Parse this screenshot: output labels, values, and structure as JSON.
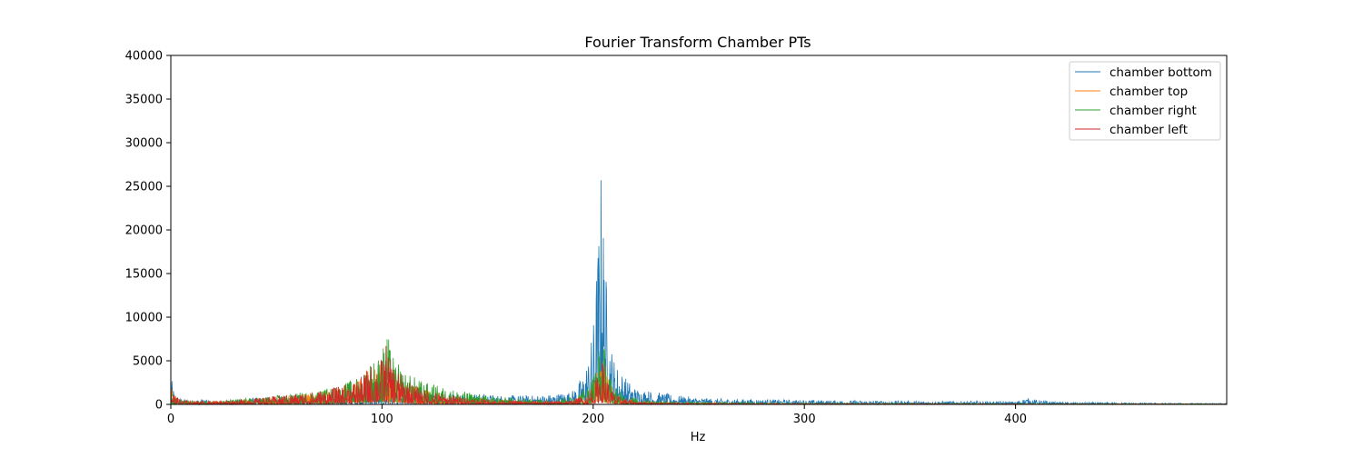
{
  "chart_data": {
    "type": "line",
    "title": "Fourier Transform Chamber PTs",
    "xlabel": "Hz",
    "ylabel": "",
    "xlim": [
      0,
      500
    ],
    "ylim": [
      0,
      40000
    ],
    "x_ticks": [
      0,
      100,
      200,
      300,
      400
    ],
    "y_ticks": [
      0,
      5000,
      10000,
      15000,
      20000,
      25000,
      30000,
      35000,
      40000
    ],
    "grid": false,
    "legend_position": "top-right",
    "series": [
      {
        "name": "chamber bottom",
        "color": "#1f77b4",
        "points": [
          [
            0,
            2500
          ],
          [
            2,
            900
          ],
          [
            5,
            500
          ],
          [
            10,
            400
          ],
          [
            15,
            500
          ],
          [
            20,
            300
          ],
          [
            30,
            400
          ],
          [
            40,
            600
          ],
          [
            50,
            700
          ],
          [
            60,
            800
          ],
          [
            70,
            800
          ],
          [
            80,
            750
          ],
          [
            90,
            900
          ],
          [
            100,
            1000
          ],
          [
            110,
            900
          ],
          [
            120,
            900
          ],
          [
            130,
            1000
          ],
          [
            140,
            1100
          ],
          [
            150,
            900
          ],
          [
            160,
            800
          ],
          [
            170,
            800
          ],
          [
            180,
            900
          ],
          [
            190,
            1200
          ],
          [
            195,
            2500
          ],
          [
            198,
            4500
          ],
          [
            200,
            7000
          ],
          [
            202,
            14000
          ],
          [
            203,
            18000
          ],
          [
            204,
            22200
          ],
          [
            205,
            17000
          ],
          [
            206,
            12000
          ],
          [
            208,
            6000
          ],
          [
            210,
            4000
          ],
          [
            215,
            2500
          ],
          [
            220,
            1500
          ],
          [
            230,
            1100
          ],
          [
            240,
            800
          ],
          [
            250,
            600
          ],
          [
            260,
            500
          ],
          [
            280,
            450
          ],
          [
            300,
            400
          ],
          [
            320,
            350
          ],
          [
            350,
            300
          ],
          [
            380,
            280
          ],
          [
            400,
            250
          ],
          [
            405,
            600
          ],
          [
            410,
            400
          ],
          [
            420,
            200
          ],
          [
            450,
            150
          ],
          [
            480,
            100
          ],
          [
            500,
            80
          ]
        ]
      },
      {
        "name": "chamber top",
        "color": "#ff7f0e",
        "points": [
          [
            0,
            2000
          ],
          [
            2,
            800
          ],
          [
            5,
            400
          ],
          [
            10,
            300
          ],
          [
            20,
            300
          ],
          [
            30,
            400
          ],
          [
            40,
            500
          ],
          [
            50,
            700
          ],
          [
            60,
            900
          ],
          [
            70,
            1200
          ],
          [
            80,
            1600
          ],
          [
            90,
            2500
          ],
          [
            95,
            3500
          ],
          [
            100,
            3800
          ],
          [
            105,
            3000
          ],
          [
            110,
            2000
          ],
          [
            120,
            1300
          ],
          [
            130,
            900
          ],
          [
            140,
            700
          ],
          [
            150,
            500
          ],
          [
            160,
            400
          ],
          [
            170,
            300
          ],
          [
            180,
            300
          ],
          [
            190,
            400
          ],
          [
            198,
            1200
          ],
          [
            202,
            3000
          ],
          [
            204,
            5000
          ],
          [
            206,
            3500
          ],
          [
            208,
            1800
          ],
          [
            212,
            800
          ],
          [
            220,
            400
          ],
          [
            230,
            200
          ],
          [
            250,
            150
          ],
          [
            300,
            100
          ],
          [
            400,
            60
          ],
          [
            500,
            50
          ]
        ]
      },
      {
        "name": "chamber right",
        "color": "#2ca02c",
        "points": [
          [
            0,
            1800
          ],
          [
            2,
            700
          ],
          [
            5,
            400
          ],
          [
            10,
            300
          ],
          [
            20,
            300
          ],
          [
            30,
            450
          ],
          [
            40,
            600
          ],
          [
            50,
            800
          ],
          [
            60,
            1000
          ],
          [
            70,
            1300
          ],
          [
            80,
            1700
          ],
          [
            90,
            2600
          ],
          [
            95,
            4000
          ],
          [
            100,
            4500
          ],
          [
            102,
            7000
          ],
          [
            104,
            5000
          ],
          [
            106,
            4000
          ],
          [
            110,
            3000
          ],
          [
            115,
            2500
          ],
          [
            120,
            2000
          ],
          [
            130,
            1500
          ],
          [
            140,
            1100
          ],
          [
            150,
            800
          ],
          [
            160,
            600
          ],
          [
            170,
            500
          ],
          [
            180,
            500
          ],
          [
            190,
            700
          ],
          [
            198,
            1800
          ],
          [
            202,
            4000
          ],
          [
            204,
            6500
          ],
          [
            206,
            4500
          ],
          [
            208,
            2500
          ],
          [
            212,
            1200
          ],
          [
            220,
            600
          ],
          [
            230,
            300
          ],
          [
            250,
            200
          ],
          [
            300,
            120
          ],
          [
            400,
            80
          ],
          [
            500,
            60
          ]
        ]
      },
      {
        "name": "chamber left",
        "color": "#d62728",
        "points": [
          [
            0,
            1700
          ],
          [
            2,
            700
          ],
          [
            5,
            400
          ],
          [
            10,
            300
          ],
          [
            20,
            300
          ],
          [
            30,
            400
          ],
          [
            40,
            550
          ],
          [
            50,
            750
          ],
          [
            60,
            950
          ],
          [
            70,
            1200
          ],
          [
            80,
            1600
          ],
          [
            90,
            2400
          ],
          [
            95,
            3600
          ],
          [
            100,
            4200
          ],
          [
            102,
            5500
          ],
          [
            104,
            4000
          ],
          [
            106,
            3500
          ],
          [
            110,
            2500
          ],
          [
            115,
            1800
          ],
          [
            120,
            1300
          ],
          [
            130,
            900
          ],
          [
            140,
            650
          ],
          [
            150,
            450
          ],
          [
            160,
            350
          ],
          [
            170,
            300
          ],
          [
            180,
            300
          ],
          [
            190,
            350
          ],
          [
            198,
            1000
          ],
          [
            202,
            2500
          ],
          [
            204,
            4200
          ],
          [
            206,
            3000
          ],
          [
            208,
            1500
          ],
          [
            212,
            700
          ],
          [
            220,
            300
          ],
          [
            230,
            150
          ],
          [
            250,
            100
          ],
          [
            300,
            80
          ],
          [
            400,
            50
          ],
          [
            500,
            40
          ]
        ]
      }
    ]
  }
}
